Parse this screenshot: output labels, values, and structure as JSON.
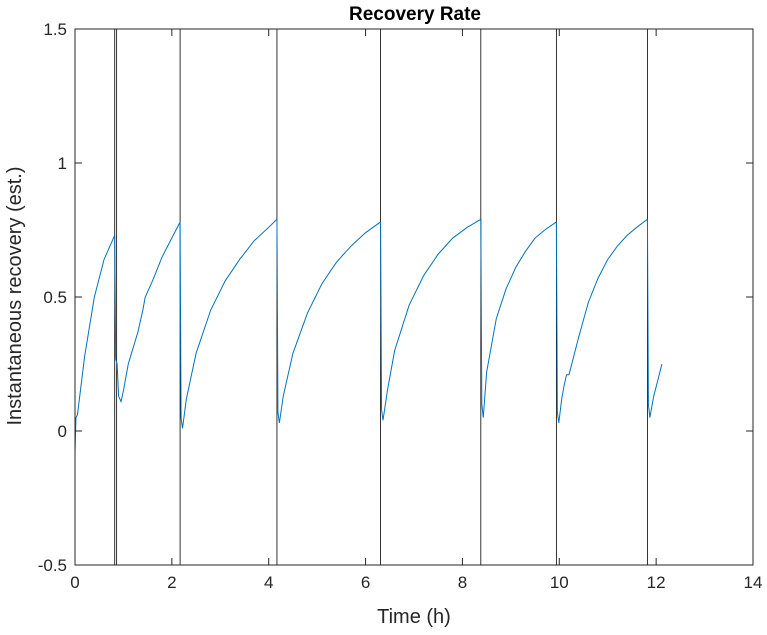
{
  "chart_data": {
    "type": "line",
    "title": "Recovery Rate",
    "xlabel": "Time (h)",
    "ylabel": "Instantaneous recovery (est.)",
    "xlim": [
      0,
      14
    ],
    "ylim": [
      -0.5,
      1.5
    ],
    "xticks": [
      0,
      2,
      4,
      6,
      8,
      10,
      12,
      14
    ],
    "yticks": [
      -0.5,
      0,
      0.5,
      1,
      1.5
    ],
    "xtick_labels": [
      "0",
      "2",
      "4",
      "6",
      "8",
      "10",
      "12",
      "14"
    ],
    "ytick_labels": [
      "-0.5",
      "0",
      "0.5",
      "1",
      "1.5"
    ],
    "grid": false,
    "colors": {
      "series": "#0072BD",
      "event_lines": "#000000",
      "axes": "#262626"
    },
    "event_lines_x": [
      0.82,
      0.86,
      2.17,
      4.17,
      6.31,
      8.38,
      9.94,
      11.82
    ],
    "segments": [
      {
        "x": [
          0.0,
          0.02,
          0.05,
          0.2,
          0.4,
          0.6,
          0.82
        ],
        "y": [
          -0.08,
          0.05,
          0.06,
          0.28,
          0.5,
          0.64,
          0.73
        ]
      },
      {
        "x": [
          0.82,
          0.84,
          0.87
        ],
        "y": [
          0.73,
          0.27,
          0.25
        ]
      },
      {
        "x": [
          0.87,
          0.9,
          0.95,
          1.0,
          1.1,
          1.2,
          1.3,
          1.4,
          1.45,
          1.6,
          1.8,
          2.0,
          2.17
        ],
        "y": [
          0.25,
          0.13,
          0.11,
          0.15,
          0.25,
          0.31,
          0.37,
          0.45,
          0.5,
          0.56,
          0.65,
          0.72,
          0.78
        ]
      },
      {
        "x": [
          2.17,
          2.19,
          2.22,
          2.3,
          2.5,
          2.8,
          3.1,
          3.4,
          3.7,
          4.0,
          4.17
        ],
        "y": [
          0.78,
          0.05,
          0.01,
          0.12,
          0.29,
          0.45,
          0.56,
          0.64,
          0.71,
          0.76,
          0.79
        ]
      },
      {
        "x": [
          4.17,
          4.19,
          4.22,
          4.3,
          4.5,
          4.8,
          5.1,
          5.4,
          5.7,
          6.0,
          6.31
        ],
        "y": [
          0.79,
          0.07,
          0.03,
          0.13,
          0.29,
          0.44,
          0.55,
          0.63,
          0.69,
          0.74,
          0.78
        ]
      },
      {
        "x": [
          6.31,
          6.33,
          6.36,
          6.45,
          6.6,
          6.9,
          7.2,
          7.5,
          7.8,
          8.1,
          8.38
        ],
        "y": [
          0.78,
          0.08,
          0.04,
          0.15,
          0.3,
          0.47,
          0.58,
          0.66,
          0.72,
          0.76,
          0.79
        ]
      },
      {
        "x": [
          8.38,
          8.4,
          8.43,
          8.5,
          8.7,
          8.9,
          9.1,
          9.3,
          9.5,
          9.7,
          9.94
        ],
        "y": [
          0.79,
          0.1,
          0.05,
          0.22,
          0.42,
          0.53,
          0.61,
          0.67,
          0.72,
          0.75,
          0.78
        ]
      },
      {
        "x": [
          9.94,
          9.96,
          9.99,
          10.05,
          10.1,
          10.15,
          10.2,
          10.4,
          10.6,
          10.8,
          11.0,
          11.2,
          11.4,
          11.6,
          11.82
        ],
        "y": [
          0.78,
          0.07,
          0.03,
          0.12,
          0.17,
          0.21,
          0.21,
          0.35,
          0.48,
          0.57,
          0.64,
          0.69,
          0.73,
          0.76,
          0.79
        ]
      },
      {
        "x": [
          11.82,
          11.84,
          11.87,
          11.95,
          12.05,
          12.12
        ],
        "y": [
          0.79,
          0.1,
          0.05,
          0.13,
          0.2,
          0.25
        ]
      }
    ]
  }
}
